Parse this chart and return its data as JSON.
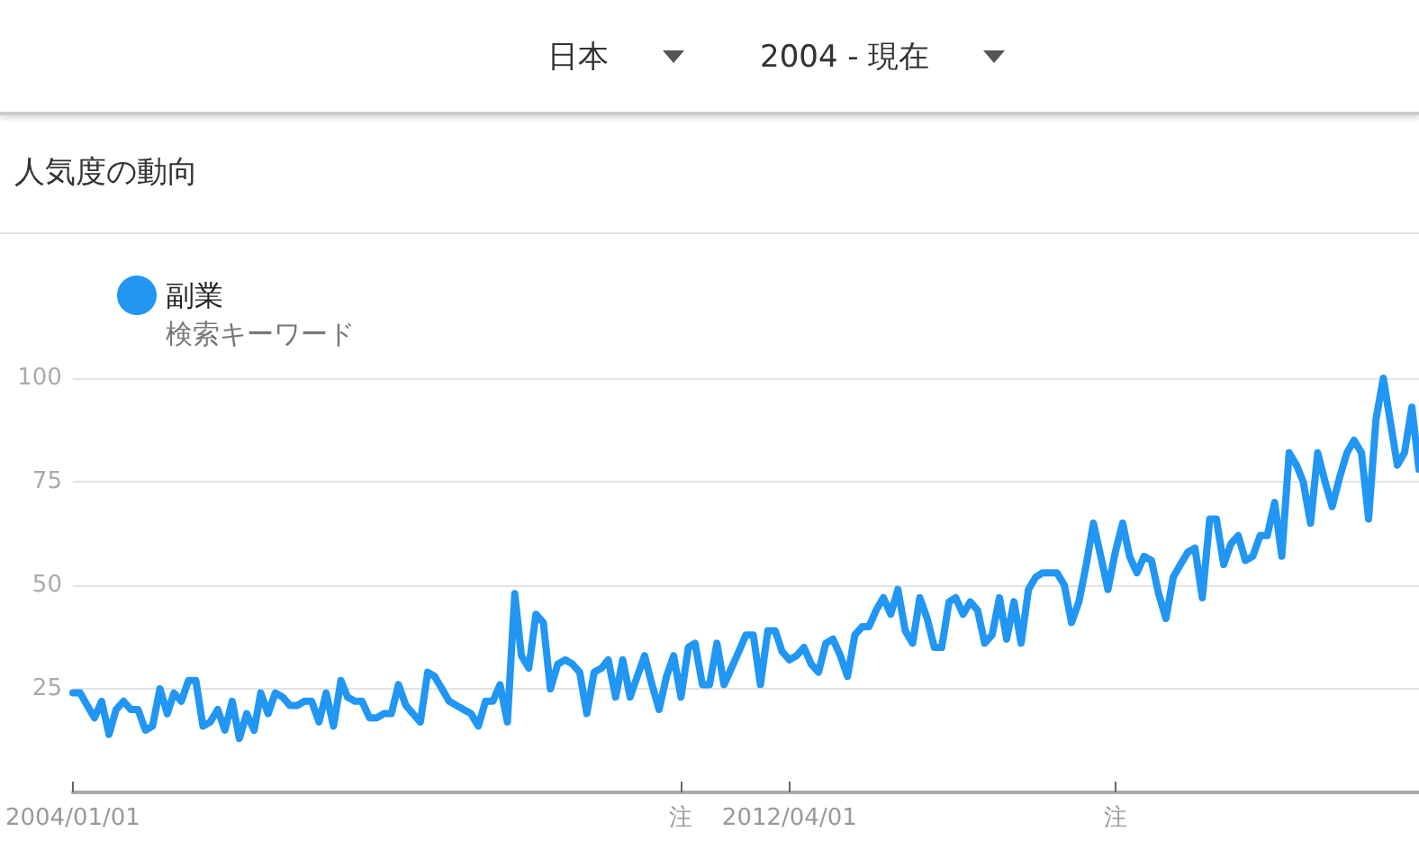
{
  "chart_data": {
    "type": "line",
    "title": "人気度の動向",
    "annotations": [
      "日本",
      "2004 - 現在"
    ],
    "legend": "top left",
    "legend_title": "検索キーワード",
    "grid": "y",
    "marker": "none",
    "line_style": "solid",
    "ylim": [
      0,
      100
    ],
    "yticks": [
      25,
      50,
      75,
      100
    ],
    "xlim": [
      "2004-01-01",
      "2019-07-01"
    ],
    "xticks": [
      {
        "value": "2004-01-01",
        "label": "2004/01/01"
      },
      {
        "value": "2011-01-01",
        "label": "注"
      },
      {
        "value": "2012-04-01",
        "label": "2012/04/01"
      },
      {
        "value": "2016-01-01",
        "label": "注"
      }
    ],
    "x": [
      "2004-01",
      "2004-02",
      "2004-03",
      "2004-04",
      "2004-05",
      "2004-06",
      "2004-07",
      "2004-08",
      "2004-09",
      "2004-10",
      "2004-11",
      "2004-12",
      "2005-01",
      "2005-02",
      "2005-03",
      "2005-04",
      "2005-05",
      "2005-06",
      "2005-07",
      "2005-08",
      "2005-09",
      "2005-10",
      "2005-11",
      "2005-12",
      "2006-01",
      "2006-02",
      "2006-03",
      "2006-04",
      "2006-05",
      "2006-06",
      "2006-07",
      "2006-08",
      "2006-09",
      "2006-10",
      "2006-11",
      "2006-12",
      "2007-01",
      "2007-02",
      "2007-03",
      "2007-04",
      "2007-05",
      "2007-06",
      "2007-07",
      "2007-08",
      "2007-09",
      "2007-10",
      "2007-11",
      "2007-12",
      "2008-01",
      "2008-02",
      "2008-03",
      "2008-04",
      "2008-05",
      "2008-06",
      "2008-07",
      "2008-08",
      "2008-09",
      "2008-10",
      "2008-11",
      "2008-12",
      "2009-01",
      "2009-02",
      "2009-03",
      "2009-04",
      "2009-05",
      "2009-06",
      "2009-07",
      "2009-08",
      "2009-09",
      "2009-10",
      "2009-11",
      "2009-12",
      "2010-01",
      "2010-02",
      "2010-03",
      "2010-04",
      "2010-05",
      "2010-06",
      "2010-07",
      "2010-08",
      "2010-09",
      "2010-10",
      "2010-11",
      "2010-12",
      "2011-01",
      "2011-02",
      "2011-03",
      "2011-04",
      "2011-05",
      "2011-06",
      "2011-07",
      "2011-08",
      "2011-09",
      "2011-10",
      "2011-11",
      "2011-12",
      "2012-01",
      "2012-02",
      "2012-03",
      "2012-04",
      "2012-05",
      "2012-06",
      "2012-07",
      "2012-08",
      "2012-09",
      "2012-10",
      "2012-11",
      "2012-12",
      "2013-01",
      "2013-02",
      "2013-03",
      "2013-04",
      "2013-05",
      "2013-06",
      "2013-07",
      "2013-08",
      "2013-09",
      "2013-10",
      "2013-11",
      "2013-12",
      "2014-01",
      "2014-02",
      "2014-03",
      "2014-04",
      "2014-05",
      "2014-06",
      "2014-07",
      "2014-08",
      "2014-09",
      "2014-10",
      "2014-11",
      "2014-12",
      "2015-01",
      "2015-02",
      "2015-03",
      "2015-04",
      "2015-05",
      "2015-06",
      "2015-07",
      "2015-08",
      "2015-09",
      "2015-10",
      "2015-11",
      "2015-12",
      "2016-01",
      "2016-02",
      "2016-03",
      "2016-04",
      "2016-05",
      "2016-06",
      "2016-07",
      "2016-08",
      "2016-09",
      "2016-10",
      "2016-11",
      "2016-12",
      "2017-01",
      "2017-02",
      "2017-03",
      "2017-04",
      "2017-05",
      "2017-06",
      "2017-07",
      "2017-08",
      "2017-09",
      "2017-10",
      "2017-11",
      "2017-12",
      "2018-01",
      "2018-02",
      "2018-03",
      "2018-04",
      "2018-05",
      "2018-06",
      "2018-07",
      "2018-08",
      "2018-09",
      "2018-10",
      "2018-11",
      "2018-12",
      "2019-01",
      "2019-02",
      "2019-03",
      "2019-04",
      "2019-05",
      "2019-06",
      "2019-07"
    ],
    "series": [
      {
        "name": "副業",
        "color": "#2196f3",
        "values": [
          24,
          24,
          21,
          18,
          22,
          14,
          20,
          22,
          20,
          20,
          15,
          16,
          25,
          19,
          24,
          22,
          27,
          27,
          16,
          17,
          20,
          15,
          22,
          13,
          19,
          15,
          24,
          19,
          24,
          23,
          21,
          21,
          22,
          22,
          17,
          24,
          16,
          27,
          23,
          22,
          22,
          18,
          18,
          19,
          19,
          26,
          21,
          19,
          17,
          29,
          28,
          25,
          22,
          21,
          20,
          19,
          16,
          22,
          22,
          26,
          17,
          48,
          33,
          30,
          43,
          41,
          25,
          31,
          32,
          31,
          29,
          19,
          29,
          30,
          32,
          23,
          32,
          23,
          28,
          33,
          26,
          20,
          28,
          33,
          23,
          35,
          36,
          26,
          26,
          36,
          26,
          30,
          34,
          38,
          38,
          26,
          39,
          39,
          34,
          32,
          33,
          35,
          31,
          29,
          36,
          37,
          33,
          28,
          38,
          40,
          40,
          44,
          47,
          43,
          49,
          39,
          36,
          47,
          42,
          35,
          35,
          46,
          47,
          43,
          46,
          44,
          36,
          38,
          47,
          37,
          46,
          36,
          49,
          52,
          53,
          53,
          53,
          50,
          41,
          46,
          55,
          65,
          57,
          49,
          58,
          65,
          57,
          53,
          57,
          56,
          48,
          42,
          52,
          55,
          58,
          59,
          47,
          66,
          66,
          55,
          60,
          62,
          56,
          57,
          62,
          62,
          70,
          57,
          82,
          79,
          75,
          65,
          82,
          75,
          69,
          76,
          82,
          85,
          82,
          66,
          90,
          100,
          90,
          79,
          82,
          93,
          78
        ]
      }
    ]
  }
}
